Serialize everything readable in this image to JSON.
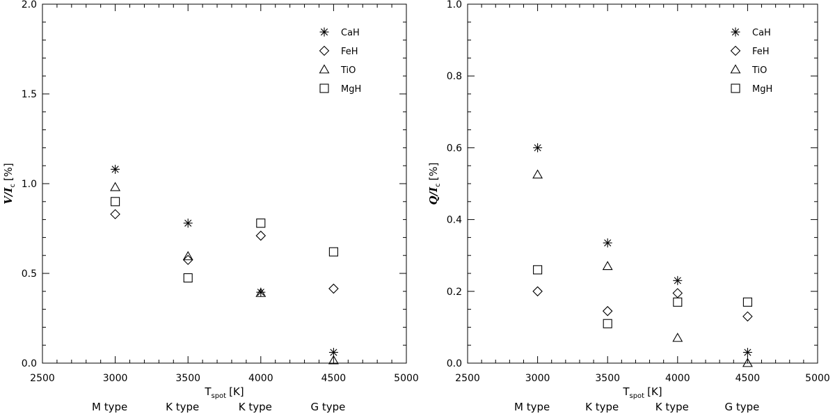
{
  "chart_data": [
    {
      "type": "scatter",
      "xlabel": "T",
      "xlabel_sub": "spot",
      "xlabel_unit": "[K]",
      "ylabel": "V/I",
      "ylabel_sub": "c",
      "ylabel_unit": "[%]",
      "xlim": [
        2500,
        5000
      ],
      "ylim": [
        0,
        2.0
      ],
      "x_ticks": [
        2500,
        3000,
        3500,
        4000,
        4500,
        5000
      ],
      "y_ticks": [
        0.0,
        0.5,
        1.0,
        1.5,
        2.0
      ],
      "y_tick_labels": [
        "0.0",
        "0.5",
        "1.0",
        "1.5",
        "2.0"
      ],
      "type_labels": [
        {
          "x": 3000,
          "label": "M type"
        },
        {
          "x": 3500,
          "label": "K type"
        },
        {
          "x": 4000,
          "label": "K type"
        },
        {
          "x": 4500,
          "label": "G type"
        }
      ],
      "legend_position": "top-right",
      "series": [
        {
          "name": "CaH",
          "marker": "asterisk",
          "x": [
            3000,
            3500,
            4000,
            4500
          ],
          "y": [
            1.08,
            0.78,
            0.395,
            0.06
          ]
        },
        {
          "name": "FeH",
          "marker": "diamond",
          "x": [
            3000,
            3500,
            4000,
            4500
          ],
          "y": [
            0.83,
            0.575,
            0.71,
            0.415
          ]
        },
        {
          "name": "TiO",
          "marker": "triangle",
          "x": [
            3000,
            3500,
            4000,
            4500
          ],
          "y": [
            0.98,
            0.595,
            0.39,
            0.015
          ]
        },
        {
          "name": "MgH",
          "marker": "square",
          "x": [
            3000,
            3500,
            4000,
            4500
          ],
          "y": [
            0.9,
            0.475,
            0.78,
            0.62
          ]
        }
      ]
    },
    {
      "type": "scatter",
      "xlabel": "T",
      "xlabel_sub": "spot",
      "xlabel_unit": "[K]",
      "ylabel": "Q/I",
      "ylabel_sub": "c",
      "ylabel_unit": "[%]",
      "xlim": [
        2500,
        5000
      ],
      "ylim": [
        0,
        1.0
      ],
      "x_ticks": [
        2500,
        3000,
        3500,
        4000,
        4500,
        5000
      ],
      "y_ticks": [
        0.0,
        0.2,
        0.4,
        0.6,
        0.8,
        1.0
      ],
      "y_tick_labels": [
        "0.0",
        "0.2",
        "0.4",
        "0.6",
        "0.8",
        "1.0"
      ],
      "type_labels": [
        {
          "x": 3000,
          "label": "M type"
        },
        {
          "x": 3500,
          "label": "K type"
        },
        {
          "x": 4000,
          "label": "K type"
        },
        {
          "x": 4500,
          "label": "G type"
        }
      ],
      "legend_position": "top-right",
      "series": [
        {
          "name": "CaH",
          "marker": "asterisk",
          "x": [
            3000,
            3500,
            4000,
            4500
          ],
          "y": [
            0.6,
            0.335,
            0.23,
            0.03
          ]
        },
        {
          "name": "FeH",
          "marker": "diamond",
          "x": [
            3000,
            3500,
            4000,
            4500
          ],
          "y": [
            0.2,
            0.145,
            0.195,
            0.13
          ]
        },
        {
          "name": "TiO",
          "marker": "triangle",
          "x": [
            3000,
            3500,
            4000,
            4500
          ],
          "y": [
            0.525,
            0.27,
            0.07,
            0.0
          ]
        },
        {
          "name": "MgH",
          "marker": "square",
          "x": [
            3000,
            3500,
            4000,
            4500
          ],
          "y": [
            0.26,
            0.11,
            0.17,
            0.17
          ]
        }
      ]
    }
  ]
}
